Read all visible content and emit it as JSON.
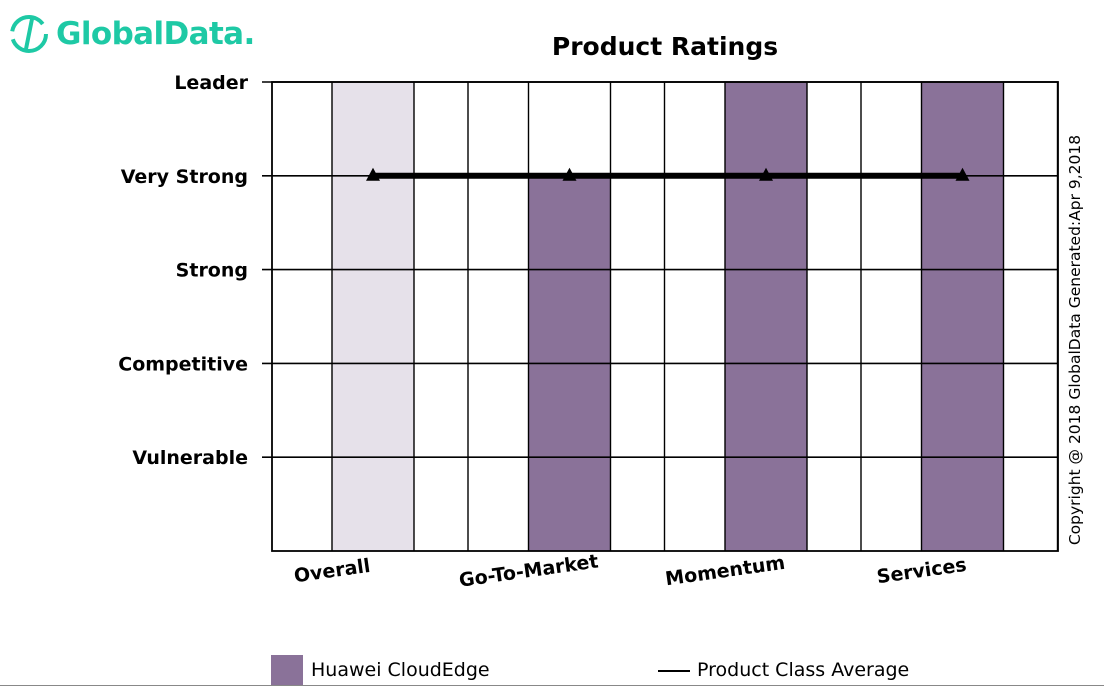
{
  "brand": {
    "name": "GlobalData.",
    "color": "#1ec9a5"
  },
  "copyright": "Copyright @ 2018 GlobalData Generated:Apr 9,2018",
  "chart_data": {
    "type": "bar",
    "title": "Product Ratings",
    "categories": [
      "Overall",
      "Go-To-Market",
      "Momentum",
      "Services"
    ],
    "levels": [
      "Vulnerable",
      "Competitive",
      "Strong",
      "Very Strong",
      "Leader"
    ],
    "ylim": [
      0,
      5
    ],
    "series": [
      {
        "name": "Huawei CloudEdge",
        "kind": "bar",
        "values": [
          5,
          4,
          5,
          5
        ],
        "color": "#8a7299",
        "highlight_color": "#e6e1ea",
        "highlight_index": 0
      },
      {
        "name": "Product Class Average",
        "kind": "line",
        "marker": "triangle",
        "values": [
          4,
          4,
          4,
          4
        ],
        "color": "#000000"
      }
    ],
    "grid": true,
    "legend_position": "bottom"
  }
}
